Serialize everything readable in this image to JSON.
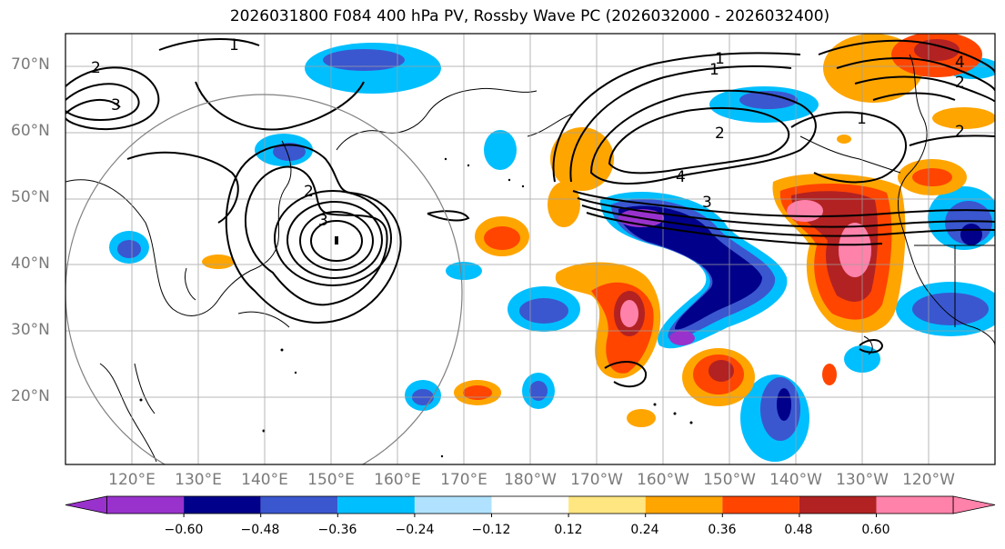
{
  "title": "2026031800 F084 400 hPa PV, Rossby Wave PC (2026032000 - 2026032400)",
  "latitude_labels": [
    "70°N",
    "60°N",
    "50°N",
    "40°N",
    "30°N",
    "20°N"
  ],
  "longitude_labels": [
    "120°E",
    "130°E",
    "140°E",
    "150°E",
    "160°E",
    "170°E",
    "180°W",
    "170°W",
    "160°W",
    "150°W",
    "140°W",
    "130°W",
    "120°W"
  ],
  "contour_labels": [
    "1",
    "1",
    "1",
    "1",
    "2",
    "2",
    "2",
    "2",
    "2",
    "3",
    "3",
    "3",
    "4",
    "4"
  ],
  "colorbar": {
    "ticks": [
      "−0.60",
      "−0.48",
      "−0.36",
      "−0.24",
      "−0.12",
      "0.12",
      "0.24",
      "0.36",
      "0.48",
      "0.60"
    ],
    "colors": [
      "#9932cc",
      "#00008b",
      "#3a57d0",
      "#00bfff",
      "#b0e2ff",
      "#ffffff",
      "#ffe680",
      "#ffa500",
      "#ff4500",
      "#b22222",
      "#ff82ab"
    ]
  }
}
